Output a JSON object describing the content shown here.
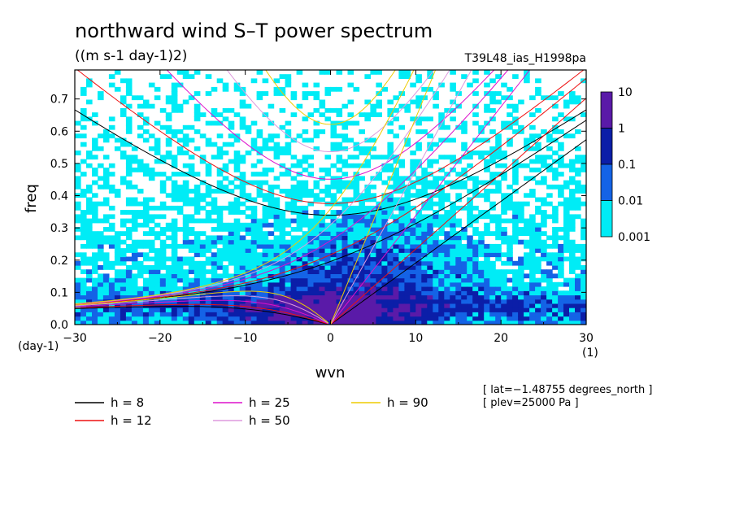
{
  "chart_data": {
    "type": "heatmap",
    "title": "northward wind S–T power spectrum",
    "subtitle": "((m s-1 day-1)2)",
    "run_label": "T39L48_ias_H1998pa",
    "xlabel": "wvn",
    "ylabel": "freq",
    "x_unit": "(1)",
    "y_unit": "(day-1)",
    "xlim": [
      -30,
      30
    ],
    "ylim": [
      0,
      0.79
    ],
    "x_ticks": [
      -30,
      -20,
      -10,
      0,
      10,
      20,
      30
    ],
    "x_tick_labels": [
      "−30",
      "−20",
      "−10",
      "0",
      "10",
      "20",
      "30"
    ],
    "y_ticks": [
      0,
      0.1,
      0.2,
      0.3,
      0.4,
      0.5,
      0.6,
      0.7
    ],
    "y_tick_labels": [
      "0.0",
      "0.1",
      "0.2",
      "0.3",
      "0.4",
      "0.5",
      "0.6",
      "0.7"
    ],
    "colorbar": {
      "levels": [
        "10",
        "1",
        "0.1",
        "0.01",
        "0.001"
      ],
      "colors": [
        "#5a1aa8",
        "#0b1ea8",
        "#1463e6",
        "#00ecf6"
      ]
    },
    "dispersion_curves": [
      {
        "label": "h =  8",
        "h": 8,
        "color": "#000000"
      },
      {
        "label": "h = 12",
        "h": 12,
        "color": "#ee1111"
      },
      {
        "label": "h = 25",
        "h": 25,
        "color": "#dd11cc"
      },
      {
        "label": "h = 50",
        "h": 50,
        "color": "#dd99dd"
      },
      {
        "label": "h = 90",
        "h": 90,
        "color": "#eecc00"
      }
    ],
    "annotations": [
      "[ lat=−1.48755 degrees_north ]",
      "[ plev=25000 Pa ]"
    ]
  }
}
